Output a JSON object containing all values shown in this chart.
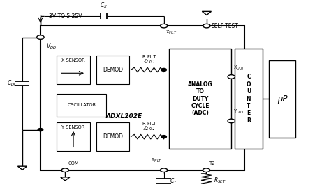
{
  "fig_width": 4.74,
  "fig_height": 2.69,
  "bg_color": "#ffffff",
  "labels": {
    "voltage": "3V TO 5.25V",
    "vdd": "$V_{DD}$",
    "cx_label": "$C_X$",
    "self_test": "SELF-TEST",
    "rfilt_x": "R_FILT\n32kΩ",
    "rfilt_y": "R_FILT\n32kΩ",
    "adxl": "ADXL202E",
    "adc_text": "ANALOG\nTO\nDUTY\nCYCLE\n(ADC)",
    "counter_text": "C\nO\nU\nN\nT\nE\nR",
    "uP_text": "μP",
    "x_sensor": "X SENSOR",
    "y_sensor": "Y SENSOR",
    "com": "COM",
    "oscillator": "OSCILLATOR",
    "demod": "DEMOD",
    "xout": "X$_{OUT}$",
    "yout": "Y$_{OUT}$",
    "yfilt": "Y$_{FILT}$",
    "xfilt": "X$_{FILT}$",
    "t2": "T2",
    "cy": "$C_Y$",
    "rset": "$R_{SET}$",
    "cdc": "$C_{DC}$"
  }
}
